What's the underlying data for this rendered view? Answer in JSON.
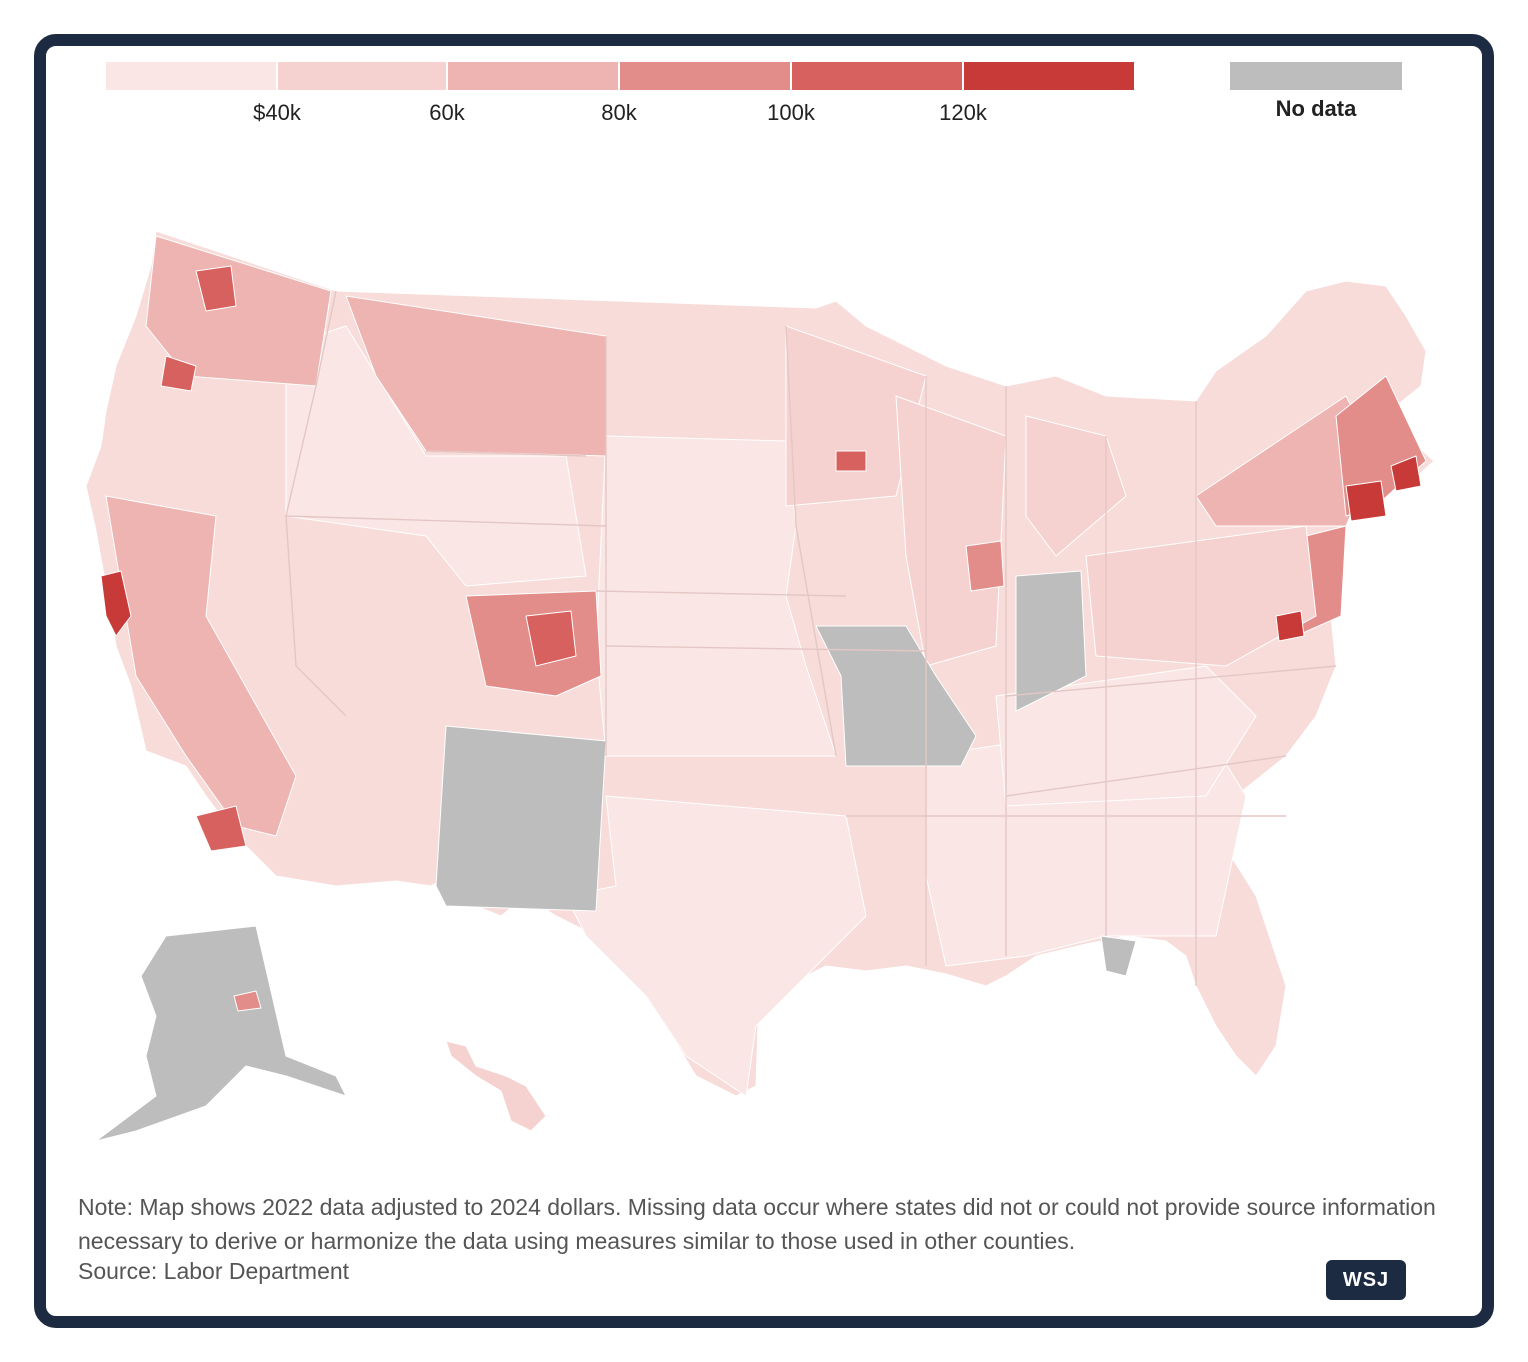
{
  "legend": {
    "ticks": [
      "$40k",
      "60k",
      "80k",
      "100k",
      "120k"
    ],
    "bins": [
      {
        "color": "#f9e6e5"
      },
      {
        "color": "#f5d2d0"
      },
      {
        "color": "#edb4b1"
      },
      {
        "color": "#e28d89"
      },
      {
        "color": "#d7615e"
      },
      {
        "color": "#c83a38"
      }
    ],
    "no_data_label": "No data",
    "no_data_color": "#bdbdbd"
  },
  "note": "Note: Map shows 2022 data adjusted to 2024 dollars. Missing data occur where states did not or could not provide source information necessary to derive or harmonize the data using measures similar to those used in other counties.",
  "source": "Source: Labor Department",
  "brand": "WSJ"
}
